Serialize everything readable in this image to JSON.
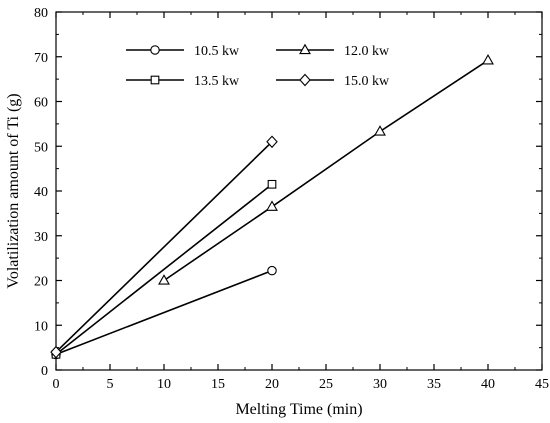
{
  "chart_data": {
    "type": "line",
    "xlabel": "Melting Time (min)",
    "ylabel": "Volatilization amount of Ti (g)",
    "xlim": [
      0,
      45
    ],
    "ylim": [
      0,
      80
    ],
    "xticks": [
      0,
      5,
      10,
      15,
      20,
      25,
      30,
      35,
      40,
      45
    ],
    "yticks": [
      0,
      10,
      20,
      30,
      40,
      50,
      60,
      70,
      80
    ],
    "grid": false,
    "legend_position": "top-left",
    "series": [
      {
        "name": "10.5 kw",
        "marker": "circle",
        "x": [
          0,
          20
        ],
        "y": [
          3.5,
          22.2
        ]
      },
      {
        "name": "12.0 kw",
        "marker": "triangle",
        "x": [
          10,
          20,
          30,
          40
        ],
        "y": [
          20.0,
          36.5,
          53.3,
          69.2
        ]
      },
      {
        "name": "13.5 kw",
        "marker": "square",
        "x": [
          0,
          20
        ],
        "y": [
          3.5,
          41.5
        ]
      },
      {
        "name": "15.0 kw",
        "marker": "diamond",
        "x": [
          0,
          20
        ],
        "y": [
          4.0,
          51.0
        ]
      }
    ]
  }
}
